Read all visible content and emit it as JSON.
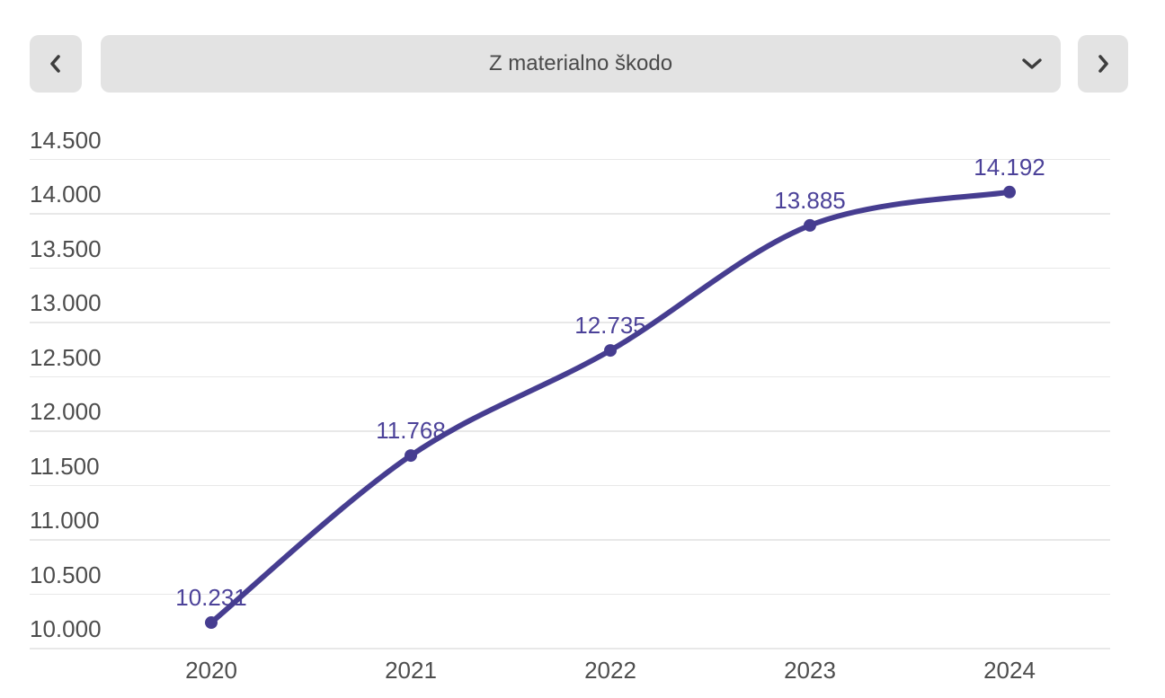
{
  "header": {
    "prev_button": {
      "icon": "chevron-left-icon"
    },
    "next_button": {
      "icon": "chevron-right-icon"
    },
    "dropdown": {
      "value": "Z materialno škodo",
      "icon": "chevron-down-icon"
    }
  },
  "chart_data": {
    "type": "line",
    "title": "",
    "xlabel": "",
    "ylabel": "",
    "categories": [
      "2020",
      "2021",
      "2022",
      "2023",
      "2024"
    ],
    "series": [
      {
        "name": "Z materialno škodo",
        "values": [
          10231,
          11768,
          12735,
          13885,
          14192
        ]
      }
    ],
    "data_labels": [
      "10.231",
      "11.768",
      "12.735",
      "13.885",
      "14.192"
    ],
    "y_ticks": [
      "10.000",
      "10.500",
      "11.000",
      "11.500",
      "12.000",
      "12.500",
      "13.000",
      "13.500",
      "14.000",
      "14.500"
    ],
    "ylim": [
      10000,
      14500
    ],
    "y_step": 500,
    "grid": true,
    "legend": "none",
    "smooth": true,
    "colors": {
      "line": "#463d90",
      "point": "#463d90",
      "data_label": "#4c4299",
      "axis_label": "#4d4d4d",
      "gridline": "#e8e8e8",
      "control_bg": "#e3e3e3",
      "control_icon": "#3d3d3d"
    }
  }
}
